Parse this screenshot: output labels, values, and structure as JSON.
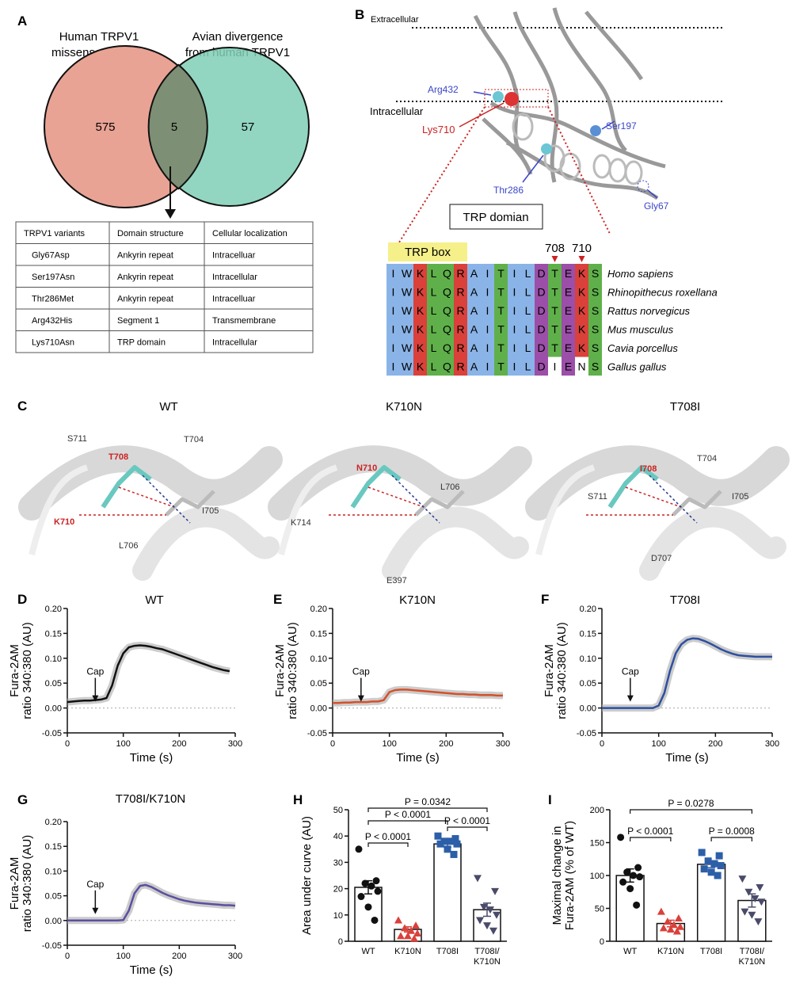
{
  "panel_labels": [
    "A",
    "B",
    "C",
    "D",
    "E",
    "F",
    "G",
    "H",
    "I"
  ],
  "venn": {
    "left_title": [
      "Human TRPV1",
      "missense variants"
    ],
    "right_title": [
      "Avian divergence",
      "from human TRPV1"
    ],
    "left_count": 575,
    "overlap_count": 5,
    "right_count": 57
  },
  "table": {
    "header": [
      "TRPV1 variants",
      "Domain structure",
      "Cellular localization"
    ],
    "rows": [
      [
        "Gly67Asp",
        "Ankyrin repeat",
        "Intracelluar"
      ],
      [
        "Ser197Asn",
        "Ankyrin repeat",
        "Intracellular"
      ],
      [
        "Thr286Met",
        "Ankyrin repeat",
        "Intracelluar"
      ],
      [
        "Arg432His",
        "Segment 1",
        "Transmembrane"
      ],
      [
        "Lys710Asn",
        "TRP domain",
        "Intracellular"
      ]
    ]
  },
  "structure": {
    "extracellular": "Extracellular",
    "intracellular": "Intracellular",
    "residues": [
      "Arg432",
      "Lys710",
      "Ser197",
      "Thr286",
      "Gly67"
    ],
    "domain_box": "TRP domian"
  },
  "alignment": {
    "box_label": "TRP box",
    "positions": [
      708,
      710
    ],
    "sequences": [
      {
        "residues": "IWKLQRAITILDTEKS",
        "species": "Homo sapiens"
      },
      {
        "residues": "IWKLQRAITILDTEKS",
        "species": "Rhinopithecus roxellana"
      },
      {
        "residues": "IWKLQRAITILDTEKS",
        "species": "Rattus norvegicus"
      },
      {
        "residues": "IWKLQRAITILDTEKS",
        "species": "Mus musculus"
      },
      {
        "residues": "IWKLQRAITILDTEKS",
        "species": "Cavia porcellus"
      },
      {
        "residues": "IWKLQRAITILDIENS",
        "species": "Gallus gallus"
      }
    ]
  },
  "panel_c": [
    {
      "title": "WT",
      "labels": [
        "S711",
        "T708",
        "T704",
        "I705",
        "K710",
        "L706"
      ]
    },
    {
      "title": "K710N",
      "labels": [
        "N710",
        "L706",
        "K714",
        "E397"
      ]
    },
    {
      "title": "T708I",
      "labels": [
        "I708",
        "T704",
        "S711",
        "I705",
        "D707"
      ]
    }
  ],
  "chart_data": [
    {
      "type": "line",
      "title": "WT",
      "xlabel": "Time (s)",
      "ylabel": [
        "Fura-2AM",
        "ratio 340:380 (AU)"
      ],
      "annotation": "Cap",
      "annotation_x": 50,
      "xlim": [
        0,
        300
      ],
      "xticks": [
        0,
        100,
        200,
        300
      ],
      "ylim": [
        -0.05,
        0.2
      ],
      "yticks": [
        {
          "value": 0.2,
          "label": "0.20"
        },
        0.15,
        {
          "value": 0.1,
          "label": "0.10"
        },
        0.05,
        {
          "value": 0,
          "label": "0.00"
        },
        -0.05
      ],
      "x": [
        0,
        10,
        20,
        30,
        40,
        50,
        60,
        70,
        80,
        90,
        100,
        110,
        120,
        130,
        140,
        150,
        160,
        170,
        180,
        190,
        200,
        210,
        220,
        230,
        240,
        250,
        260,
        270,
        280,
        290
      ],
      "series": [
        {
          "color": "#111111",
          "values": [
            0.012,
            0.013,
            0.014,
            0.015,
            0.015,
            0.016,
            0.017,
            0.02,
            0.045,
            0.085,
            0.11,
            0.122,
            0.125,
            0.126,
            0.125,
            0.123,
            0.12,
            0.118,
            0.114,
            0.11,
            0.106,
            0.102,
            0.098,
            0.094,
            0.09,
            0.086,
            0.082,
            0.079,
            0.076,
            0.074
          ]
        }
      ]
    },
    {
      "type": "line",
      "title": "K710N",
      "xlabel": "Time (s)",
      "ylabel": [
        "Fura-2AM",
        "ratio 340:380 (AU)"
      ],
      "annotation": "Cap",
      "annotation_x": 50,
      "xlim": [
        0,
        300
      ],
      "xticks": [
        0,
        100,
        200,
        300
      ],
      "ylim": [
        -0.05,
        0.2
      ],
      "yticks": [
        {
          "value": 0.2,
          "label": "0.20"
        },
        0.15,
        {
          "value": 0.1,
          "label": "0.10"
        },
        0.05,
        {
          "value": 0,
          "label": "0.00"
        },
        -0.05
      ],
      "x": [
        0,
        10,
        20,
        30,
        40,
        50,
        60,
        70,
        80,
        90,
        100,
        110,
        120,
        130,
        140,
        150,
        160,
        170,
        180,
        190,
        200,
        210,
        220,
        230,
        240,
        250,
        260,
        270,
        280,
        290,
        300
      ],
      "series": [
        {
          "color": "#d4512a",
          "values": [
            0.01,
            0.01,
            0.011,
            0.011,
            0.012,
            0.012,
            0.012,
            0.013,
            0.013,
            0.016,
            0.032,
            0.036,
            0.037,
            0.037,
            0.036,
            0.035,
            0.034,
            0.033,
            0.032,
            0.031,
            0.03,
            0.029,
            0.028,
            0.028,
            0.027,
            0.027,
            0.026,
            0.026,
            0.026,
            0.025,
            0.025
          ]
        }
      ]
    },
    {
      "type": "line",
      "title": "T708I",
      "xlabel": "Time (s)",
      "ylabel": [
        "Fura-2AM",
        "ratio 340:380 (AU)"
      ],
      "annotation": "Cap",
      "annotation_x": 50,
      "xlim": [
        0,
        300
      ],
      "xticks": [
        0,
        100,
        200,
        300
      ],
      "ylim": [
        -0.05,
        0.2
      ],
      "yticks": [
        {
          "value": 0.2,
          "label": "0.20"
        },
        0.15,
        {
          "value": 0.1,
          "label": "0.10"
        },
        0.05,
        {
          "value": 0,
          "label": "0.00"
        },
        -0.05
      ],
      "x": [
        0,
        10,
        20,
        30,
        40,
        50,
        60,
        70,
        80,
        90,
        100,
        110,
        120,
        130,
        140,
        150,
        160,
        170,
        180,
        190,
        200,
        210,
        220,
        230,
        240,
        250,
        260,
        270,
        280,
        290,
        300
      ],
      "series": [
        {
          "color": "#2d4fa0",
          "values": [
            0,
            0,
            0,
            0,
            0,
            0,
            0,
            0,
            0,
            0,
            0.005,
            0.03,
            0.075,
            0.11,
            0.128,
            0.137,
            0.14,
            0.139,
            0.135,
            0.13,
            0.124,
            0.118,
            0.113,
            0.109,
            0.106,
            0.105,
            0.104,
            0.103,
            0.103,
            0.103,
            0.103
          ]
        }
      ]
    },
    {
      "type": "line",
      "title": "T708I/K710N",
      "xlabel": "Time (s)",
      "ylabel": [
        "Fura-2AM",
        "ratio 340:380 (AU)"
      ],
      "annotation": "Cap",
      "annotation_x": 50,
      "xlim": [
        0,
        300
      ],
      "xticks": [
        0,
        100,
        200,
        300
      ],
      "ylim": [
        -0.05,
        0.2
      ],
      "yticks": [
        {
          "value": 0.2,
          "label": "0.20"
        },
        0.15,
        {
          "value": 0.1,
          "label": "0.10"
        },
        0.05,
        {
          "value": 0,
          "label": "0.00"
        },
        -0.05
      ],
      "x": [
        0,
        10,
        20,
        30,
        40,
        50,
        60,
        70,
        80,
        90,
        100,
        110,
        120,
        130,
        140,
        150,
        160,
        170,
        180,
        190,
        200,
        210,
        220,
        230,
        240,
        250,
        260,
        270,
        280,
        290,
        300
      ],
      "series": [
        {
          "color": "#5b4fa0",
          "values": [
            0,
            0,
            0,
            0,
            0,
            0,
            0,
            0,
            0,
            0,
            0.001,
            0.02,
            0.055,
            0.07,
            0.072,
            0.068,
            0.062,
            0.056,
            0.051,
            0.047,
            0.043,
            0.04,
            0.038,
            0.036,
            0.035,
            0.034,
            0.033,
            0.032,
            0.031,
            0.031,
            0.03
          ]
        }
      ]
    },
    {
      "type": "bar",
      "ylabel": [
        "Area under curve (AU)"
      ],
      "ylim": [
        0,
        50
      ],
      "yticks": [
        0,
        10,
        20,
        30,
        40,
        50
      ],
      "categories": [
        "WT",
        "K710N",
        "T708I",
        "T708I/\nK710N"
      ],
      "values": [
        20.5,
        4.5,
        37,
        12
      ],
      "errors": [
        2.5,
        1,
        1.2,
        2.5
      ],
      "points": [
        [
          35,
          23,
          22,
          21,
          19,
          17,
          13,
          8
        ],
        [
          8,
          6,
          5,
          4,
          3,
          2,
          2,
          1
        ],
        [
          40,
          39,
          38,
          38,
          37,
          37,
          35,
          33
        ],
        [
          24,
          19,
          13,
          12,
          10,
          8,
          6,
          4
        ]
      ],
      "colors": [
        "#111111",
        "#d9413a",
        "#2d5fa8",
        "#4a4a6a"
      ],
      "markers": [
        "circle",
        "triangle",
        "square",
        "triangle-down"
      ],
      "comparisons": [
        {
          "pair": [
            0,
            3
          ],
          "label": "P = 0.0342"
        },
        {
          "pair": [
            0,
            2
          ],
          "label": "P < 0.0001"
        },
        {
          "pair": [
            2,
            3
          ],
          "label": "P < 0.0001"
        },
        {
          "pair": [
            0,
            1
          ],
          "label": "P < 0.0001"
        }
      ]
    },
    {
      "type": "bar",
      "ylabel": [
        "Maximal change in",
        "Fura-2AM (% of WT)"
      ],
      "ylim": [
        0,
        200
      ],
      "yticks": [
        0,
        50,
        100,
        150,
        200
      ],
      "categories": [
        "WT",
        "K710N",
        "T708I",
        "T708I/\nK710N"
      ],
      "values": [
        100,
        27,
        117,
        62
      ],
      "errors": [
        10,
        5,
        5,
        10
      ],
      "points": [
        [
          158,
          112,
          105,
          100,
          98,
          90,
          80,
          55
        ],
        [
          45,
          35,
          30,
          25,
          22,
          20,
          18,
          15
        ],
        [
          135,
          130,
          122,
          118,
          115,
          110,
          105,
          100
        ],
        [
          95,
          82,
          75,
          65,
          60,
          45,
          40,
          30
        ]
      ],
      "colors": [
        "#111111",
        "#d9413a",
        "#2d5fa8",
        "#4a4a6a"
      ],
      "markers": [
        "circle",
        "triangle",
        "square",
        "triangle-down"
      ],
      "comparisons": [
        {
          "pair": [
            0,
            3
          ],
          "label": "P = 0.0278"
        },
        {
          "pair": [
            0,
            1
          ],
          "label": "P < 0.0001"
        },
        {
          "pair": [
            2,
            3
          ],
          "label": "P = 0.0008"
        }
      ]
    }
  ]
}
